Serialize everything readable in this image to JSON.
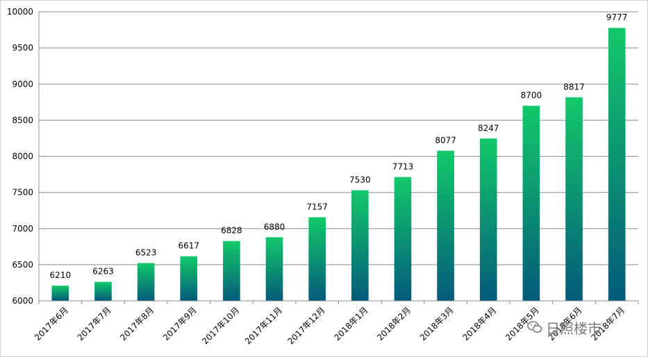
{
  "chart_data": {
    "type": "bar",
    "title": "",
    "xlabel": "",
    "ylabel": "",
    "categories": [
      "2017年6月",
      "2017年7月",
      "2017年8月",
      "2017年9月",
      "2017年10月",
      "2017年11月",
      "2017年12月",
      "2018年1月",
      "2018年2月",
      "2018年3月",
      "2018年4月",
      "2018年5月",
      "2018年6月",
      "2018年7月"
    ],
    "values": [
      6210,
      6263,
      6523,
      6617,
      6828,
      6880,
      7157,
      7530,
      7713,
      8077,
      8247,
      8700,
      8817,
      9777
    ],
    "ylim": [
      6000,
      10000
    ],
    "yticks": [
      6000,
      6500,
      7000,
      7500,
      8000,
      8500,
      9000,
      9500,
      10000
    ],
    "grid": true,
    "legend": "none",
    "data_labels": true,
    "colors": {
      "bar_top": "#12c96a",
      "bar_bottom": "#045a7a",
      "grid": "#8c8c8c",
      "axis": "#8c8c8c",
      "text": "#000000"
    }
  },
  "watermark": {
    "icon": "wechat-icon",
    "text": "日照楼市"
  }
}
